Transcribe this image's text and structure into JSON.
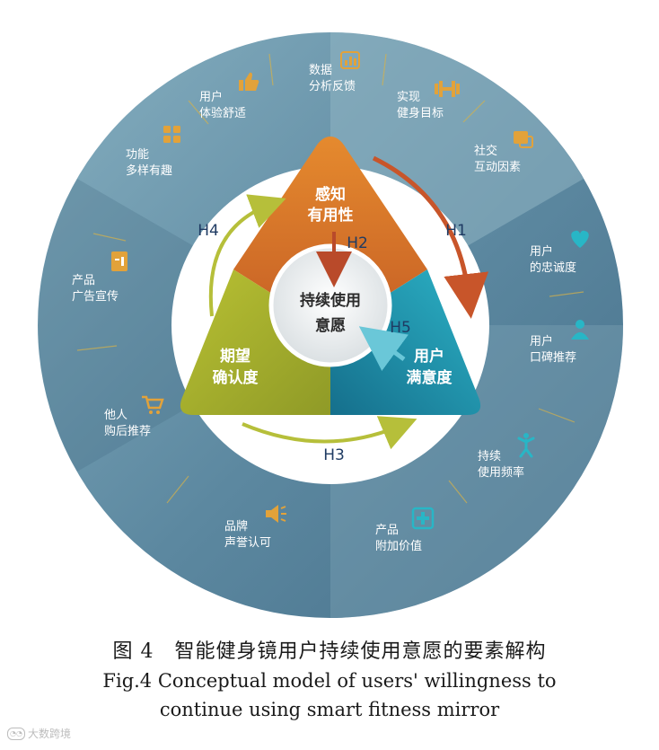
{
  "outer_ring": {
    "items": [
      {
        "id": "data",
        "line1": "数据",
        "line2": "分析反馈",
        "icon": "bar-chart-icon"
      },
      {
        "id": "goal",
        "line1": "实现",
        "line2": "健身目标",
        "icon": "dumbbell-icon"
      },
      {
        "id": "social",
        "line1": "社交",
        "line2": "互动因素",
        "icon": "chat-icon"
      },
      {
        "id": "loyalty",
        "line1": "用户",
        "line2": "的忠诚度",
        "icon": "heart-icon"
      },
      {
        "id": "wom",
        "line1": "用户",
        "line2": "口碑推荐",
        "icon": "person-icon"
      },
      {
        "id": "freq",
        "line1": "持续",
        "line2": "使用频率",
        "icon": "runner-icon"
      },
      {
        "id": "value",
        "line1": "产品",
        "line2": "附加价值",
        "icon": "plus-box-icon"
      },
      {
        "id": "brand",
        "line1": "品牌",
        "line2": "声誉认可",
        "icon": "speaker-icon"
      },
      {
        "id": "others",
        "line1": "他人",
        "line2": "购后推荐",
        "icon": "cart-icon"
      },
      {
        "id": "ads",
        "line1": "产品",
        "line2": "广告宣传",
        "icon": "door-icon"
      },
      {
        "id": "fun",
        "line1": "功能",
        "line2": "多样有趣",
        "icon": "grid-icon"
      },
      {
        "id": "experience",
        "line1": "用户",
        "line2": "体验舒适",
        "icon": "thumbs-up-icon"
      }
    ]
  },
  "triangle": {
    "top": {
      "line1": "感知",
      "line2": "有用性",
      "color": "#d9742a"
    },
    "left": {
      "line1": "期望",
      "line2": "确认度",
      "color": "#a9b42e"
    },
    "right": {
      "line1": "用户",
      "line2": "满意度",
      "color": "#1c93ad"
    }
  },
  "center": {
    "line1": "持续使用",
    "line2": "意愿"
  },
  "hypotheses": {
    "h1": "H1",
    "h2": "H2",
    "h3": "H3",
    "h4": "H4",
    "h5": "H5"
  },
  "colors": {
    "ring_light": "#7fa9bb",
    "ring_dark": "#4f7a92",
    "icon_gold": "#e2a23a",
    "icon_teal": "#28b6c6",
    "arrow_orange": "#c8552a",
    "arrow_green": "#b6bf3a",
    "arrow_teal": "#5ec3d6"
  },
  "caption": {
    "cn": "图 4　智能健身镜用户持续使用意愿的要素解构",
    "en_line1": "Fig.4 Conceptual model of users' willingness to",
    "en_line2": "continue using smart fitness mirror"
  },
  "watermark": {
    "text": "大数跨境"
  }
}
